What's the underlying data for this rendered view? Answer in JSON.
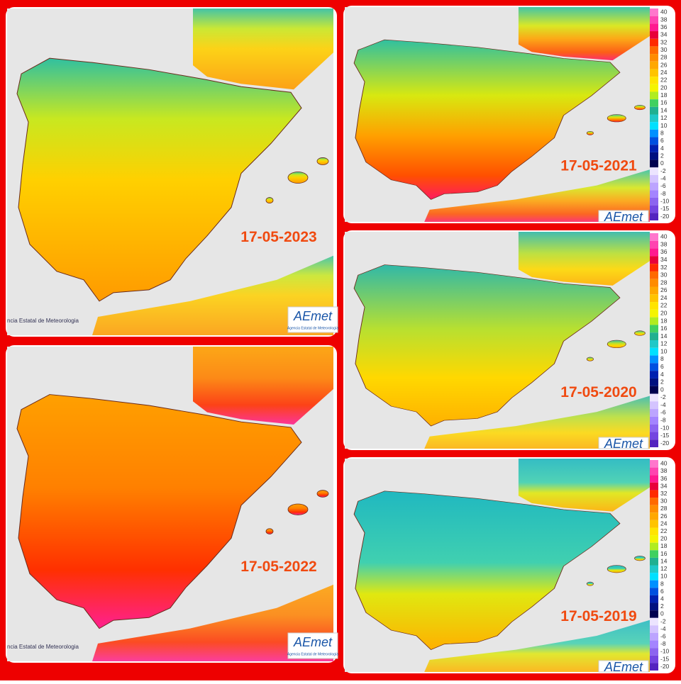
{
  "panels": [
    {
      "date": "17-05-2023",
      "credit": "ncia Estatal de Meteorologia",
      "logo": "AEmet",
      "logo_caption": "Agencia Estatal de Meteorología"
    },
    {
      "date": "17-05-2021",
      "logo": "AEmet"
    },
    {
      "date": "17-05-2020",
      "logo": "AEmet"
    },
    {
      "date": "17-05-2022",
      "credit": "ncia Estatal de Meteorologia",
      "logo": "AEmet",
      "logo_caption": "Agencia Estatal de Meteorología"
    },
    {
      "date": "17-05-2019",
      "logo": "AEmet"
    }
  ],
  "legend": [
    {
      "label": "40",
      "color": "#ff77cc"
    },
    {
      "label": "38",
      "color": "#ff44b0"
    },
    {
      "label": "36",
      "color": "#ff1a90"
    },
    {
      "label": "34",
      "color": "#e8003a"
    },
    {
      "label": "32",
      "color": "#ff2a00"
    },
    {
      "label": "30",
      "color": "#ff6a00"
    },
    {
      "label": "28",
      "color": "#ff8c00"
    },
    {
      "label": "26",
      "color": "#ffa800"
    },
    {
      "label": "24",
      "color": "#ffc400"
    },
    {
      "label": "22",
      "color": "#ffe400"
    },
    {
      "label": "20",
      "color": "#f4f400"
    },
    {
      "label": "18",
      "color": "#b0ec20"
    },
    {
      "label": "16",
      "color": "#40d060"
    },
    {
      "label": "14",
      "color": "#20b090"
    },
    {
      "label": "12",
      "color": "#20c8c8"
    },
    {
      "label": "10",
      "color": "#00e0ff"
    },
    {
      "label": "8",
      "color": "#0090ff"
    },
    {
      "label": "6",
      "color": "#0050e0"
    },
    {
      "label": "4",
      "color": "#0020b0"
    },
    {
      "label": "2",
      "color": "#001080"
    },
    {
      "label": "0",
      "color": "#000050"
    },
    {
      "label": "-2",
      "color": "#ece4ff"
    },
    {
      "label": "-4",
      "color": "#d4c4ff"
    },
    {
      "label": "-6",
      "color": "#bca4ff"
    },
    {
      "label": "-8",
      "color": "#a484ff"
    },
    {
      "label": "-10",
      "color": "#8c64f0"
    },
    {
      "label": "-15",
      "color": "#7444e0"
    },
    {
      "label": "-20",
      "color": "#5424c0"
    }
  ]
}
